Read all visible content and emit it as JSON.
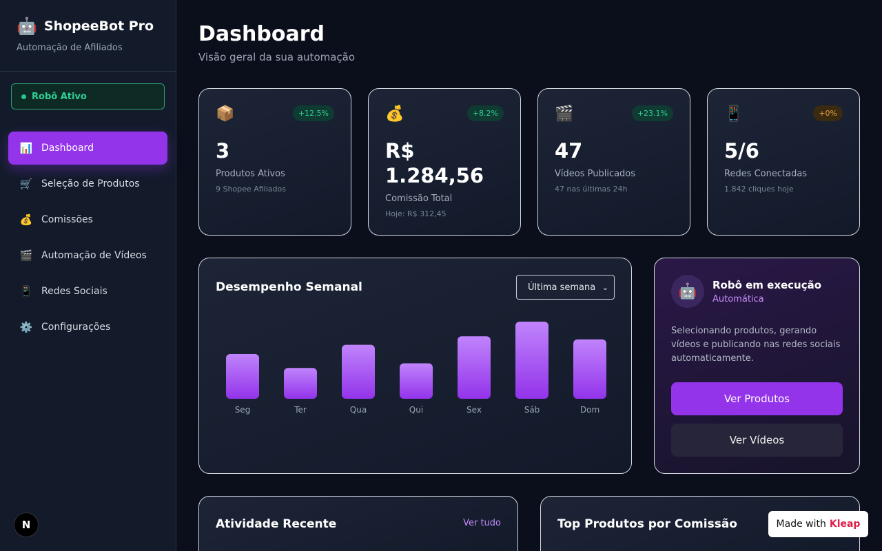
{
  "sidebar": {
    "brand_icon": "🤖",
    "brand_title": "ShopeeBot Pro",
    "brand_subtitle": "Automação de Afiliados",
    "status": "Robô Ativo",
    "items": [
      {
        "icon": "📊",
        "icon_name": "bar-chart-icon",
        "label": "Dashboard",
        "active": true
      },
      {
        "icon": "🛒",
        "icon_name": "cart-icon",
        "label": "Seleção de Produtos"
      },
      {
        "icon": "💰",
        "icon_name": "money-bag-icon",
        "label": "Comissões"
      },
      {
        "icon": "🎬",
        "icon_name": "clapper-icon",
        "label": "Automação de Vídeos"
      },
      {
        "icon": "📱",
        "icon_name": "phone-icon",
        "label": "Redes Sociais"
      },
      {
        "icon": "⚙️",
        "icon_name": "gear-icon",
        "label": "Configurações"
      }
    ],
    "avatar_letter": "N"
  },
  "header": {
    "title": "Dashboard",
    "subtitle": "Visão geral da sua automação"
  },
  "stats": [
    {
      "icon": "📦",
      "badge": "+12.5%",
      "value": "3",
      "label": "Produtos Ativos",
      "sub": "9 Shopee Afiliados"
    },
    {
      "icon": "💰",
      "badge": "+8.2%",
      "value": "R$ 1.284,56",
      "label": "Comissão Total",
      "sub": "Hoje: R$ 312,45"
    },
    {
      "icon": "🎬",
      "badge": "+23.1%",
      "value": "47",
      "label": "Vídeos Publicados",
      "sub": "47 nas últimas 24h"
    },
    {
      "icon": "📱",
      "badge": "+0%",
      "value": "5/6",
      "label": "Redes Conectadas",
      "sub": "1.842 cliques hoje"
    }
  ],
  "chart": {
    "title": "Desempenho Semanal",
    "period_selected": "Última semana"
  },
  "chart_data": {
    "type": "bar",
    "categories": [
      "Seg",
      "Ter",
      "Qua",
      "Qui",
      "Sex",
      "Sáb",
      "Dom"
    ],
    "values": [
      58,
      40,
      70,
      46,
      81,
      100,
      77
    ],
    "ylim": [
      0,
      100
    ],
    "grid": false,
    "colors": {
      "bar_top": "#c084fc",
      "bar_bottom": "#9333ea"
    }
  },
  "robot": {
    "icon": "🤖",
    "title": "Robô em execução",
    "mode": "Automática",
    "description": "Selecionando produtos, gerando vídeos e publicando nas redes sociais automaticamente.",
    "primary_button": "Ver Produtos",
    "secondary_button": "Ver Vídeos"
  },
  "activity": {
    "title": "Atividade Recente",
    "link": "Ver tudo"
  },
  "top_products": {
    "title": "Top Produtos por Comissão"
  },
  "kleap": {
    "prefix": "Made with",
    "brand": "Kleap"
  },
  "colors": {
    "accent": "#9333ea",
    "success": "#2fd095",
    "warning": "#e4a43b",
    "background": "#0b0f1c"
  }
}
